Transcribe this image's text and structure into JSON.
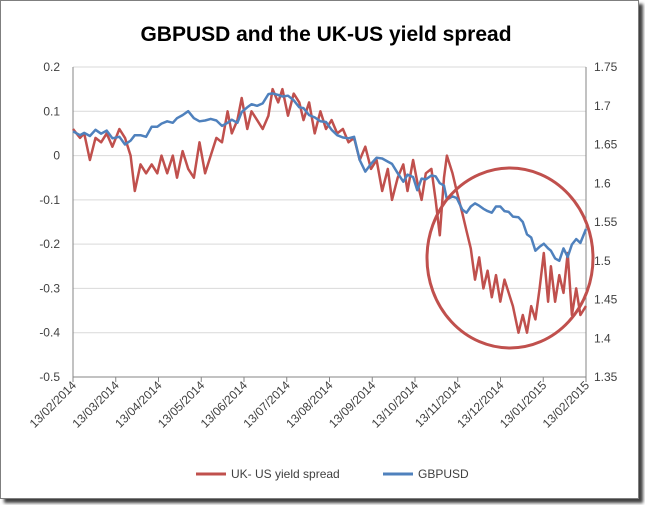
{
  "chart_data": {
    "type": "line",
    "title": "GBPUSD and the UK-US yield spread",
    "x_tick_labels": [
      "13/02/2014",
      "13/03/2014",
      "13/04/2014",
      "13/05/2014",
      "13/06/2014",
      "13/07/2014",
      "13/08/2014",
      "13/09/2014",
      "13/10/2014",
      "13/11/2014",
      "13/12/2014",
      "13/01/2015",
      "13/02/2015"
    ],
    "x_range": [
      "2014-02-13",
      "2015-02-13"
    ],
    "y_left": {
      "min": -0.5,
      "max": 0.2,
      "step": 0.1,
      "tick_labels": [
        "0.2",
        "0.1",
        "0",
        "-0.1",
        "-0.2",
        "-0.3",
        "-0.4",
        "-0.5"
      ]
    },
    "y_right": {
      "min": 1.35,
      "max": 1.75,
      "step": 0.05,
      "tick_labels": [
        "1.75",
        "1.7",
        "1.65",
        "1.6",
        "1.55",
        "1.5",
        "1.45",
        "1.4",
        "1.35"
      ]
    },
    "grid": "horizontal",
    "legend_position": "bottom",
    "series": [
      {
        "name": "UK- US yield spread",
        "axis": "left",
        "color": "#c0504d",
        "points": [
          [
            "2014-02-13",
            0.06
          ],
          [
            "2014-02-18",
            0.04
          ],
          [
            "2014-02-21",
            0.05
          ],
          [
            "2014-02-25",
            -0.01
          ],
          [
            "2014-03-01",
            0.04
          ],
          [
            "2014-03-05",
            0.03
          ],
          [
            "2014-03-09",
            0.05
          ],
          [
            "2014-03-13",
            0.02
          ],
          [
            "2014-03-18",
            0.06
          ],
          [
            "2014-03-22",
            0.04
          ],
          [
            "2014-03-26",
            0.0
          ],
          [
            "2014-03-29",
            -0.08
          ],
          [
            "2014-04-02",
            -0.02
          ],
          [
            "2014-04-06",
            -0.04
          ],
          [
            "2014-04-10",
            -0.02
          ],
          [
            "2014-04-14",
            -0.04
          ],
          [
            "2014-04-17",
            0.0
          ],
          [
            "2014-04-21",
            -0.04
          ],
          [
            "2014-04-25",
            0.0
          ],
          [
            "2014-04-28",
            -0.05
          ],
          [
            "2014-05-02",
            0.01
          ],
          [
            "2014-05-06",
            -0.03
          ],
          [
            "2014-05-10",
            -0.05
          ],
          [
            "2014-05-14",
            0.03
          ],
          [
            "2014-05-18",
            -0.04
          ],
          [
            "2014-05-22",
            0.0
          ],
          [
            "2014-05-26",
            0.04
          ],
          [
            "2014-05-30",
            0.03
          ],
          [
            "2014-06-03",
            0.1
          ],
          [
            "2014-06-06",
            0.05
          ],
          [
            "2014-06-10",
            0.08
          ],
          [
            "2014-06-13",
            0.13
          ],
          [
            "2014-06-17",
            0.06
          ],
          [
            "2014-06-20",
            0.1
          ],
          [
            "2014-06-24",
            0.08
          ],
          [
            "2014-06-28",
            0.06
          ],
          [
            "2014-07-02",
            0.09
          ],
          [
            "2014-07-05",
            0.15
          ],
          [
            "2014-07-09",
            0.12
          ],
          [
            "2014-07-12",
            0.15
          ],
          [
            "2014-07-16",
            0.09
          ],
          [
            "2014-07-20",
            0.14
          ],
          [
            "2014-07-24",
            0.12
          ],
          [
            "2014-07-27",
            0.08
          ],
          [
            "2014-07-31",
            0.12
          ],
          [
            "2014-08-04",
            0.05
          ],
          [
            "2014-08-08",
            0.1
          ],
          [
            "2014-08-12",
            0.06
          ],
          [
            "2014-08-16",
            0.08
          ],
          [
            "2014-08-20",
            0.05
          ],
          [
            "2014-08-24",
            0.06
          ],
          [
            "2014-08-28",
            0.03
          ],
          [
            "2014-09-01",
            0.04
          ],
          [
            "2014-09-05",
            -0.01
          ],
          [
            "2014-09-09",
            0.02
          ],
          [
            "2014-09-13",
            -0.03
          ],
          [
            "2014-09-17",
            -0.01
          ],
          [
            "2014-09-21",
            -0.08
          ],
          [
            "2014-09-25",
            -0.03
          ],
          [
            "2014-09-28",
            -0.1
          ],
          [
            "2014-10-02",
            -0.05
          ],
          [
            "2014-10-06",
            -0.02
          ],
          [
            "2014-10-09",
            -0.08
          ],
          [
            "2014-10-13",
            -0.01
          ],
          [
            "2014-10-16",
            -0.06
          ],
          [
            "2014-10-19",
            -0.1
          ],
          [
            "2014-10-22",
            -0.04
          ],
          [
            "2014-10-26",
            -0.03
          ],
          [
            "2014-10-29",
            -0.1
          ],
          [
            "2014-11-01",
            -0.18
          ],
          [
            "2014-11-04",
            -0.05
          ],
          [
            "2014-11-06",
            0.0
          ],
          [
            "2014-11-10",
            -0.04
          ],
          [
            "2014-11-13",
            -0.08
          ],
          [
            "2014-11-17",
            -0.13
          ],
          [
            "2014-11-20",
            -0.17
          ],
          [
            "2014-11-23",
            -0.21
          ],
          [
            "2014-11-26",
            -0.28
          ],
          [
            "2014-11-29",
            -0.23
          ],
          [
            "2014-12-02",
            -0.3
          ],
          [
            "2014-12-05",
            -0.26
          ],
          [
            "2014-12-08",
            -0.32
          ],
          [
            "2014-12-11",
            -0.27
          ],
          [
            "2014-12-14",
            -0.33
          ],
          [
            "2014-12-17",
            -0.28
          ],
          [
            "2014-12-20",
            -0.31
          ],
          [
            "2014-12-23",
            -0.34
          ],
          [
            "2014-12-27",
            -0.4
          ],
          [
            "2014-12-30",
            -0.36
          ],
          [
            "2015-01-02",
            -0.4
          ],
          [
            "2015-01-05",
            -0.34
          ],
          [
            "2015-01-08",
            -0.37
          ],
          [
            "2015-01-11",
            -0.3
          ],
          [
            "2015-01-14",
            -0.22
          ],
          [
            "2015-01-17",
            -0.33
          ],
          [
            "2015-01-19",
            -0.25
          ],
          [
            "2015-01-22",
            -0.33
          ],
          [
            "2015-01-25",
            -0.27
          ],
          [
            "2015-01-28",
            -0.31
          ],
          [
            "2015-01-31",
            -0.22
          ],
          [
            "2015-02-03",
            -0.36
          ],
          [
            "2015-02-06",
            -0.3
          ],
          [
            "2015-02-09",
            -0.36
          ],
          [
            "2015-02-13",
            -0.34
          ]
        ]
      },
      {
        "name": "GBPUSD",
        "axis": "right",
        "color": "#4f81bd",
        "points": [
          [
            "2014-02-13",
            1.667
          ],
          [
            "2014-02-18",
            1.662
          ],
          [
            "2014-02-21",
            1.665
          ],
          [
            "2014-02-25",
            1.661
          ],
          [
            "2014-03-01",
            1.669
          ],
          [
            "2014-03-05",
            1.664
          ],
          [
            "2014-03-09",
            1.668
          ],
          [
            "2014-03-13",
            1.658
          ],
          [
            "2014-03-18",
            1.66
          ],
          [
            "2014-03-22",
            1.65
          ],
          [
            "2014-03-26",
            1.655
          ],
          [
            "2014-03-29",
            1.662
          ],
          [
            "2014-04-02",
            1.662
          ],
          [
            "2014-04-06",
            1.66
          ],
          [
            "2014-04-10",
            1.673
          ],
          [
            "2014-04-14",
            1.673
          ],
          [
            "2014-04-17",
            1.677
          ],
          [
            "2014-04-21",
            1.68
          ],
          [
            "2014-04-25",
            1.678
          ],
          [
            "2014-04-28",
            1.684
          ],
          [
            "2014-05-02",
            1.688
          ],
          [
            "2014-05-06",
            1.693
          ],
          [
            "2014-05-10",
            1.684
          ],
          [
            "2014-05-14",
            1.68
          ],
          [
            "2014-05-18",
            1.681
          ],
          [
            "2014-05-22",
            1.683
          ],
          [
            "2014-05-26",
            1.681
          ],
          [
            "2014-05-30",
            1.674
          ],
          [
            "2014-06-03",
            1.678
          ],
          [
            "2014-06-06",
            1.682
          ],
          [
            "2014-06-10",
            1.678
          ],
          [
            "2014-06-13",
            1.692
          ],
          [
            "2014-06-17",
            1.698
          ],
          [
            "2014-06-20",
            1.702
          ],
          [
            "2014-06-24",
            1.7
          ],
          [
            "2014-06-28",
            1.703
          ],
          [
            "2014-07-02",
            1.715
          ],
          [
            "2014-07-05",
            1.716
          ],
          [
            "2014-07-09",
            1.714
          ],
          [
            "2014-07-12",
            1.712
          ],
          [
            "2014-07-16",
            1.713
          ],
          [
            "2014-07-20",
            1.707
          ],
          [
            "2014-07-24",
            1.698
          ],
          [
            "2014-07-27",
            1.697
          ],
          [
            "2014-07-31",
            1.688
          ],
          [
            "2014-08-04",
            1.685
          ],
          [
            "2014-08-08",
            1.68
          ],
          [
            "2014-08-12",
            1.679
          ],
          [
            "2014-08-16",
            1.669
          ],
          [
            "2014-08-20",
            1.662
          ],
          [
            "2014-08-24",
            1.659
          ],
          [
            "2014-08-28",
            1.658
          ],
          [
            "2014-09-01",
            1.66
          ],
          [
            "2014-09-05",
            1.63
          ],
          [
            "2014-09-09",
            1.615
          ],
          [
            "2014-09-13",
            1.625
          ],
          [
            "2014-09-17",
            1.633
          ],
          [
            "2014-09-21",
            1.632
          ],
          [
            "2014-09-25",
            1.628
          ],
          [
            "2014-09-28",
            1.625
          ],
          [
            "2014-10-02",
            1.613
          ],
          [
            "2014-10-06",
            1.602
          ],
          [
            "2014-10-09",
            1.611
          ],
          [
            "2014-10-13",
            1.608
          ],
          [
            "2014-10-16",
            1.591
          ],
          [
            "2014-10-19",
            1.606
          ],
          [
            "2014-10-22",
            1.605
          ],
          [
            "2014-10-26",
            1.61
          ],
          [
            "2014-10-29",
            1.609
          ],
          [
            "2014-11-01",
            1.6
          ],
          [
            "2014-11-04",
            1.597
          ],
          [
            "2014-11-06",
            1.579
          ],
          [
            "2014-11-10",
            1.583
          ],
          [
            "2014-11-13",
            1.581
          ],
          [
            "2014-11-17",
            1.566
          ],
          [
            "2014-11-20",
            1.562
          ],
          [
            "2014-11-23",
            1.57
          ],
          [
            "2014-11-26",
            1.574
          ],
          [
            "2014-11-29",
            1.571
          ],
          [
            "2014-12-02",
            1.567
          ],
          [
            "2014-12-05",
            1.564
          ],
          [
            "2014-12-08",
            1.562
          ],
          [
            "2014-12-11",
            1.57
          ],
          [
            "2014-12-14",
            1.57
          ],
          [
            "2014-12-17",
            1.564
          ],
          [
            "2014-12-20",
            1.563
          ],
          [
            "2014-12-23",
            1.557
          ],
          [
            "2014-12-27",
            1.556
          ],
          [
            "2014-12-30",
            1.55
          ],
          [
            "2015-01-02",
            1.534
          ],
          [
            "2015-01-05",
            1.53
          ],
          [
            "2015-01-08",
            1.513
          ],
          [
            "2015-01-11",
            1.518
          ],
          [
            "2015-01-14",
            1.522
          ],
          [
            "2015-01-17",
            1.516
          ],
          [
            "2015-01-19",
            1.513
          ],
          [
            "2015-01-22",
            1.503
          ],
          [
            "2015-01-25",
            1.5
          ],
          [
            "2015-01-28",
            1.516
          ],
          [
            "2015-01-31",
            1.505
          ],
          [
            "2015-02-03",
            1.521
          ],
          [
            "2015-02-06",
            1.528
          ],
          [
            "2015-02-09",
            1.523
          ],
          [
            "2015-02-13",
            1.541
          ]
        ]
      }
    ]
  }
}
